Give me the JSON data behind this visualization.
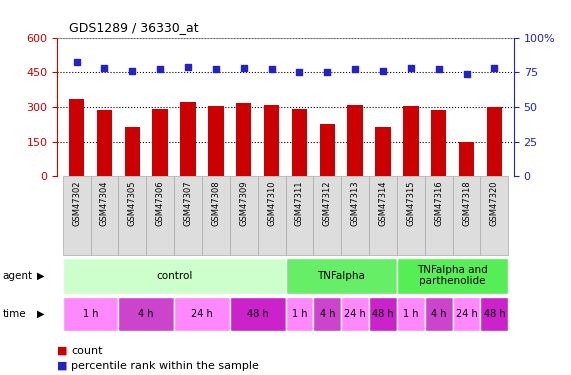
{
  "title": "GDS1289 / 36330_at",
  "samples": [
    "GSM47302",
    "GSM47304",
    "GSM47305",
    "GSM47306",
    "GSM47307",
    "GSM47308",
    "GSM47309",
    "GSM47310",
    "GSM47311",
    "GSM47312",
    "GSM47313",
    "GSM47314",
    "GSM47315",
    "GSM47316",
    "GSM47318",
    "GSM47320"
  ],
  "counts": [
    335,
    288,
    215,
    292,
    323,
    305,
    315,
    308,
    290,
    228,
    310,
    213,
    305,
    288,
    148,
    298
  ],
  "percentile_pct": [
    82,
    78,
    76,
    77,
    79,
    77,
    78,
    77,
    75,
    75,
    77,
    76,
    78,
    77,
    74,
    78
  ],
  "left_ylim": [
    0,
    600
  ],
  "left_yticks": [
    0,
    150,
    300,
    450,
    600
  ],
  "right_ylim": [
    0,
    100
  ],
  "right_yticks": [
    0,
    25,
    50,
    75,
    100
  ],
  "bar_color": "#cc0000",
  "dot_color": "#2222cc",
  "bar_width": 0.55,
  "agent_groups": [
    {
      "label": "control",
      "start": 0,
      "end": 8,
      "color": "#ccffcc"
    },
    {
      "label": "TNFalpha",
      "start": 8,
      "end": 12,
      "color": "#66ee66"
    },
    {
      "label": "TNFalpha and\nparthenolide",
      "start": 12,
      "end": 16,
      "color": "#55ee55"
    }
  ],
  "time_groups": [
    {
      "label": "1 h",
      "start": 0,
      "end": 2,
      "color": "#ff88ff"
    },
    {
      "label": "4 h",
      "start": 2,
      "end": 4,
      "color": "#cc44cc"
    },
    {
      "label": "24 h",
      "start": 4,
      "end": 6,
      "color": "#ff88ff"
    },
    {
      "label": "48 h",
      "start": 6,
      "end": 8,
      "color": "#cc22cc"
    },
    {
      "label": "1 h",
      "start": 8,
      "end": 9,
      "color": "#ff88ff"
    },
    {
      "label": "4 h",
      "start": 9,
      "end": 10,
      "color": "#cc44cc"
    },
    {
      "label": "24 h",
      "start": 10,
      "end": 11,
      "color": "#ff88ff"
    },
    {
      "label": "48 h",
      "start": 11,
      "end": 12,
      "color": "#cc22cc"
    },
    {
      "label": "1 h",
      "start": 12,
      "end": 13,
      "color": "#ff88ff"
    },
    {
      "label": "4 h",
      "start": 13,
      "end": 14,
      "color": "#cc44cc"
    },
    {
      "label": "24 h",
      "start": 14,
      "end": 15,
      "color": "#ff88ff"
    },
    {
      "label": "48 h",
      "start": 15,
      "end": 16,
      "color": "#cc22cc"
    }
  ],
  "bg_color": "#ffffff",
  "grid_color": "#000000",
  "left_axis_color": "#cc0000",
  "right_axis_color": "#2222cc",
  "sample_bg_color": "#dddddd",
  "sample_border_color": "#aaaaaa"
}
